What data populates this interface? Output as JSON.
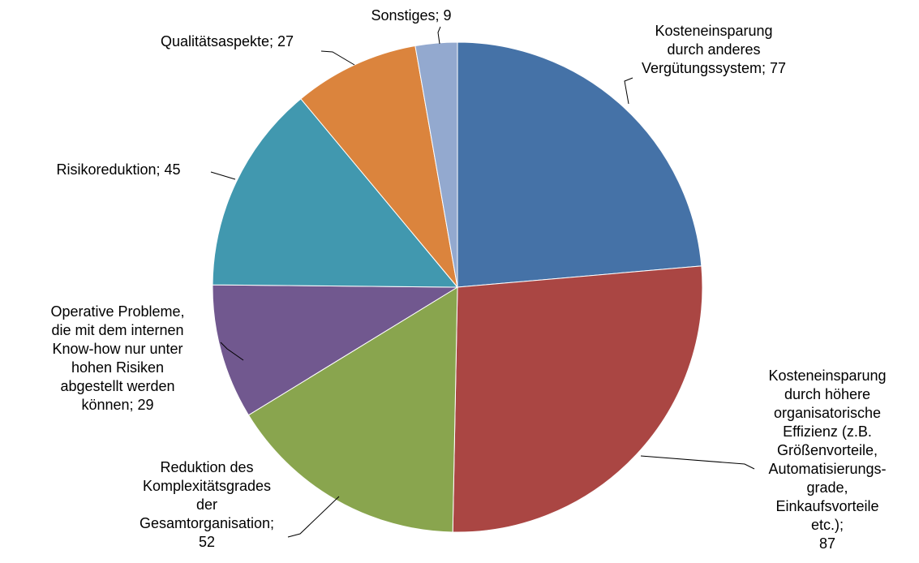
{
  "chart_data": {
    "type": "pie",
    "categories": [
      "Kosteneinsparung\ndurch anderes\nVergütungssystem",
      "Kosteneinsparung\ndurch höhere\norganisatorische\nEffizienz (z.B.\nGrößenvorteile,\nAutomatisierungs-\ngrade,\nEinkaufsvorteile etc.)",
      "Reduktion des\nKomplexitätsgrades\nder\nGesamtorganisation",
      "Operative Probleme,\ndie mit dem internen\nKnow-how nur unter\nhohen Risiken\nabgestellt werden\nkönnen",
      "Risikoreduktion",
      "Qualitätsaspekte",
      "Sonstiges"
    ],
    "values": [
      77,
      87,
      52,
      29,
      45,
      27,
      9
    ],
    "value_labels": [
      "; 77",
      ";\n87",
      ";\n52",
      "; 29",
      "; 45",
      "; 27",
      "; 9"
    ],
    "colors": [
      "#4572a7",
      "#aa4643",
      "#89a54e",
      "#71588f",
      "#4198af",
      "#db843d",
      "#93a9cf"
    ]
  }
}
